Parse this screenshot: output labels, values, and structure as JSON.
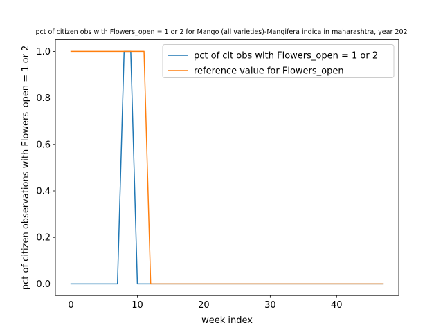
{
  "chart_data": {
    "type": "line",
    "title": "pct of citizen obs with Flowers_open = 1 or 2 for Mango (all varieties)-Mangifera indica in maharashtra, year 202",
    "xlabel": "week index",
    "ylabel": "pct of citizen observations with Flowers_open = 1 or 2",
    "xlim": [
      -2.35,
      49.35
    ],
    "ylim": [
      -0.05,
      1.05
    ],
    "xticks": [
      0,
      10,
      20,
      30,
      40
    ],
    "yticks": [
      0.0,
      0.2,
      0.4,
      0.6,
      0.8,
      1.0
    ],
    "xtick_labels": [
      "0",
      "10",
      "20",
      "30",
      "40"
    ],
    "ytick_labels": [
      "0.0",
      "0.2",
      "0.4",
      "0.6",
      "0.8",
      "1.0"
    ],
    "grid": false,
    "legend_position": "top-right",
    "series": [
      {
        "name": "pct of cit obs with Flowers_open = 1 or 2",
        "color": "#1f77b4",
        "x": [
          0,
          1,
          2,
          3,
          4,
          5,
          6,
          7,
          8,
          9,
          10,
          11,
          12,
          13,
          14,
          15,
          16,
          17,
          18,
          19,
          20,
          21,
          22,
          23,
          24,
          25,
          26,
          27,
          28,
          29,
          30,
          31,
          32,
          33,
          34,
          35,
          36,
          37,
          38,
          39,
          40,
          41,
          42,
          43,
          44,
          45,
          46,
          47
        ],
        "y": [
          0,
          0,
          0,
          0,
          0,
          0,
          0,
          0,
          1,
          1,
          0,
          0,
          0,
          0,
          0,
          0,
          0,
          0,
          0,
          0,
          0,
          0,
          0,
          0,
          0,
          0,
          0,
          0,
          0,
          0,
          0,
          0,
          0,
          0,
          0,
          0,
          0,
          0,
          0,
          0,
          0,
          0,
          0,
          0,
          0,
          0,
          0,
          0
        ]
      },
      {
        "name": "reference value for Flowers_open",
        "color": "#ff7f0e",
        "x": [
          0,
          1,
          2,
          3,
          4,
          5,
          6,
          7,
          8,
          9,
          10,
          11,
          12,
          13,
          14,
          15,
          16,
          17,
          18,
          19,
          20,
          21,
          22,
          23,
          24,
          25,
          26,
          27,
          28,
          29,
          30,
          31,
          32,
          33,
          34,
          35,
          36,
          37,
          38,
          39,
          40,
          41,
          42,
          43,
          44,
          45,
          46,
          47
        ],
        "y": [
          1,
          1,
          1,
          1,
          1,
          1,
          1,
          1,
          1,
          1,
          1,
          1,
          0,
          0,
          0,
          0,
          0,
          0,
          0,
          0,
          0,
          0,
          0,
          0,
          0,
          0,
          0,
          0,
          0,
          0,
          0,
          0,
          0,
          0,
          0,
          0,
          0,
          0,
          0,
          0,
          0,
          0,
          0,
          0,
          0,
          0,
          0,
          0
        ]
      }
    ]
  }
}
